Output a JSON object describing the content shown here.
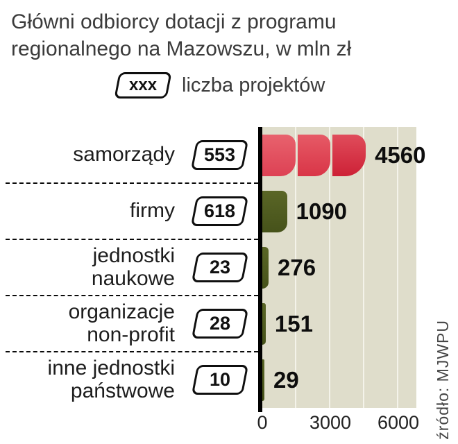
{
  "title": {
    "line1": "Główni odbiorcy dotacji z programu",
    "line2": "regionalnego na Mazowszu, w mln zł"
  },
  "legend": {
    "box_label": "xxx",
    "label": "liczba projektów"
  },
  "source": "źródło: MJWPU",
  "axis": {
    "ticks": [
      "0",
      "3000",
      "6000"
    ]
  },
  "rows": [
    {
      "label_line1": "samorządy",
      "label_line2": "",
      "projects": "553",
      "value": "4560"
    },
    {
      "label_line1": "firmy",
      "label_line2": "",
      "projects": "618",
      "value": "1090"
    },
    {
      "label_line1": "jednostki",
      "label_line2": "naukowe",
      "projects": "23",
      "value": "276"
    },
    {
      "label_line1": "organizacje",
      "label_line2": "non-profit",
      "projects": "28",
      "value": "151"
    },
    {
      "label_line1": "inne jednostki",
      "label_line2": "państwowe",
      "projects": "10",
      "value": "29"
    }
  ],
  "chart_data": {
    "type": "bar",
    "orientation": "horizontal",
    "title": "Główni odbiorcy dotacji z programu regionalnego na Mazowszu, w mln zł",
    "unit": "mln zł",
    "categories": [
      "samorządy",
      "firmy",
      "jednostki naukowe",
      "organizacje non-profit",
      "inne jednostki państwowe"
    ],
    "values": [
      4560,
      1090,
      276,
      151,
      29
    ],
    "project_counts": [
      553,
      618,
      23,
      28,
      10
    ],
    "x_ticks": [
      0,
      3000,
      6000
    ],
    "xlim": [
      0,
      6790
    ],
    "grid": "vertical-light-lines",
    "legend_note": "xxx = liczba projektów",
    "colors": {
      "bar_samorzady": "#d93244",
      "bar_others": "#4d591f",
      "plot_background": "#dfddcb",
      "axis": "#000000"
    },
    "source": "źródło: MJWPU"
  }
}
